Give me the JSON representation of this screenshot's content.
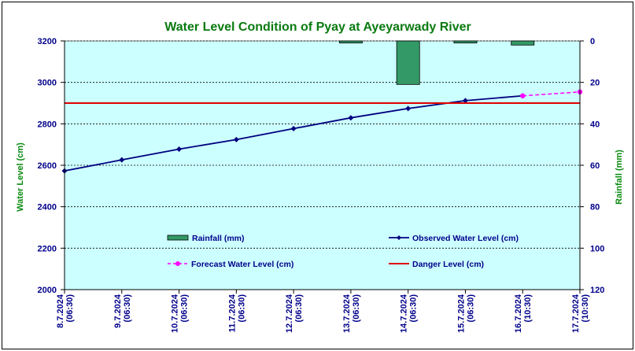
{
  "chart_data": {
    "type": "line",
    "title": "Water Level Condition of Pyay at Ayeyarwady River",
    "ylabel": "Water Level (cm)",
    "y2label": "Rainfall (mm)",
    "ylim": [
      2000,
      3200
    ],
    "y2lim": [
      0,
      120
    ],
    "y2_reversed": true,
    "yticks": [
      2000,
      2200,
      2400,
      2600,
      2800,
      3000,
      3200
    ],
    "y2ticks": [
      0,
      20,
      40,
      60,
      80,
      100,
      120
    ],
    "x_labels": [
      [
        "8.7.2024",
        "(06:30)"
      ],
      [
        "9.7.2024",
        "(06:30)"
      ],
      [
        "10.7.2024",
        "(06:30)"
      ],
      [
        "11.7.2024",
        "(06:30)"
      ],
      [
        "12.7.2024",
        "(06:30)"
      ],
      [
        "13.7.2024",
        "(06:30)"
      ],
      [
        "14.7.2024",
        "(06:30)"
      ],
      [
        "15.7.2024",
        "(06:30)"
      ],
      [
        "16.7.2024",
        "(10:30)"
      ],
      [
        "17.7.2024",
        "(10:30)"
      ]
    ],
    "grid": true,
    "colors": {
      "plot_background": "#ccffff",
      "observed": "#000080",
      "forecast": "#ff00ff",
      "danger": "#e00000",
      "rainfall_fill": "#339966"
    },
    "series": [
      {
        "name": "Observed Water Level (cm)",
        "type": "line",
        "x_index": [
          0,
          1,
          2,
          3,
          4,
          5,
          6,
          7,
          8
        ],
        "values": [
          2573,
          2626,
          2678,
          2724,
          2777,
          2829,
          2874,
          2912,
          2935
        ]
      },
      {
        "name": "Forecast Water Level (cm)",
        "type": "line",
        "dashed": true,
        "x_index": [
          8,
          9
        ],
        "values": [
          2935,
          2954
        ]
      },
      {
        "name": "Danger Level (cm)",
        "type": "hline",
        "value": 2900
      },
      {
        "name": "Rainfall (mm)",
        "type": "bar",
        "axis": "y2",
        "x_index": [
          5,
          6,
          7,
          8
        ],
        "values": [
          1,
          21,
          1,
          2
        ]
      }
    ],
    "legend": [
      {
        "label": "Rainfall (mm)",
        "kind": "bar"
      },
      {
        "label": "Observed Water Level (cm)",
        "kind": "observed"
      },
      {
        "label": "Forecast Water Level (cm)",
        "kind": "forecast"
      },
      {
        "label": "Danger Level (cm)",
        "kind": "danger"
      }
    ]
  }
}
